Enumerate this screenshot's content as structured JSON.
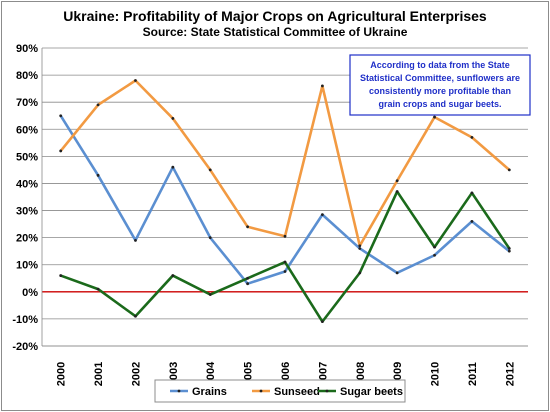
{
  "chart_data": {
    "type": "line",
    "title": "Ukraine:  Profitability of Major Crops on Agricultural Enterprises",
    "subtitle": "Source:  State Statistical Committee of Ukraine",
    "categories": [
      "2000",
      "2001",
      "2002",
      "2003",
      "2004",
      "2005",
      "2006",
      "2007",
      "2008",
      "2009",
      "2010",
      "2011",
      "2012"
    ],
    "ylim": [
      -0.2,
      0.9
    ],
    "y_ticks": [
      "90%",
      "80%",
      "70%",
      "60%",
      "50%",
      "40%",
      "30%",
      "20%",
      "10%",
      "0%",
      "-10%",
      "-20%"
    ],
    "grid": true,
    "legend_position": "bottom",
    "annotation": [
      "According to data from the State",
      "Statistical Committee, sunflowers are",
      "consistently more profitable than",
      "grain crops and sugar beets."
    ],
    "series": [
      {
        "name": "Grains",
        "color": "#5b8fd1",
        "values": [
          0.65,
          0.43,
          0.19,
          0.46,
          0.2,
          0.03,
          0.075,
          0.285,
          0.16,
          0.07,
          0.135,
          0.26,
          0.15
        ]
      },
      {
        "name": "Sunseed",
        "color": "#f29a42",
        "values": [
          0.52,
          0.69,
          0.78,
          0.64,
          0.45,
          0.24,
          0.205,
          0.76,
          0.17,
          0.41,
          0.645,
          0.57,
          0.45
        ]
      },
      {
        "name": "Sugar beets",
        "color": "#1b6a1b",
        "values": [
          0.06,
          0.01,
          -0.09,
          0.06,
          -0.01,
          0.05,
          0.11,
          -0.11,
          0.07,
          0.37,
          0.165,
          0.365,
          0.16
        ]
      }
    ],
    "zero_line_color": "#cc0000"
  }
}
